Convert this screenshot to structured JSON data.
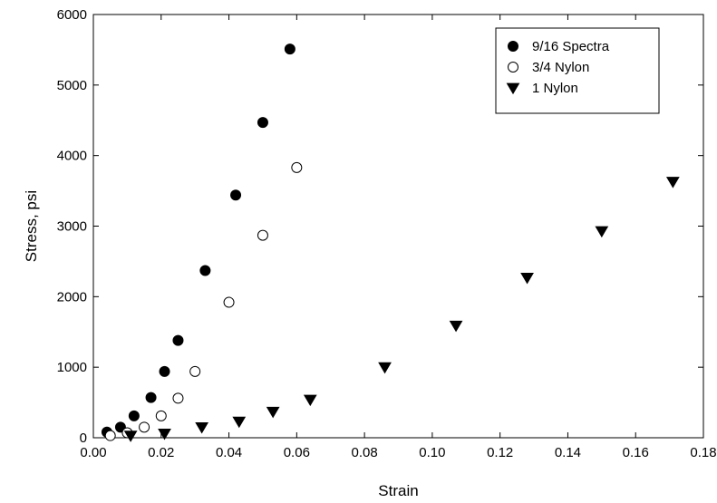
{
  "chart_data": {
    "type": "scatter",
    "title": "",
    "xlabel": "Strain",
    "ylabel": "Stress, psi",
    "xlim": [
      0,
      0.18
    ],
    "ylim": [
      0,
      6000
    ],
    "xticks": [
      "0.00",
      "0.02",
      "0.04",
      "0.06",
      "0.08",
      "0.10",
      "0.12",
      "0.14",
      "0.16",
      "0.18"
    ],
    "yticks": [
      "0",
      "1000",
      "2000",
      "3000",
      "4000",
      "5000",
      "6000"
    ],
    "grid": false,
    "legend": {
      "placement": "top-right"
    },
    "series": [
      {
        "name": "9/16 Spectra",
        "marker": "filled-circle",
        "color": "#000000",
        "x": [
          0.004,
          0.008,
          0.012,
          0.017,
          0.021,
          0.025,
          0.033,
          0.042,
          0.05,
          0.058
        ],
        "y": [
          80,
          150,
          310,
          570,
          940,
          1380,
          2370,
          3440,
          4470,
          5510
        ]
      },
      {
        "name": "3/4 Nylon",
        "marker": "open-circle",
        "color": "#000000",
        "x": [
          0.005,
          0.01,
          0.015,
          0.02,
          0.025,
          0.03,
          0.04,
          0.05,
          0.06
        ],
        "y": [
          30,
          70,
          150,
          310,
          560,
          940,
          1920,
          2870,
          3830
        ]
      },
      {
        "name": "1 Nylon",
        "marker": "filled-triangle-down",
        "color": "#000000",
        "x": [
          0.011,
          0.021,
          0.032,
          0.043,
          0.053,
          0.064,
          0.086,
          0.107,
          0.128,
          0.15,
          0.171
        ],
        "y": [
          30,
          60,
          150,
          230,
          370,
          540,
          1000,
          1590,
          2270,
          2930,
          3630
        ]
      }
    ]
  }
}
